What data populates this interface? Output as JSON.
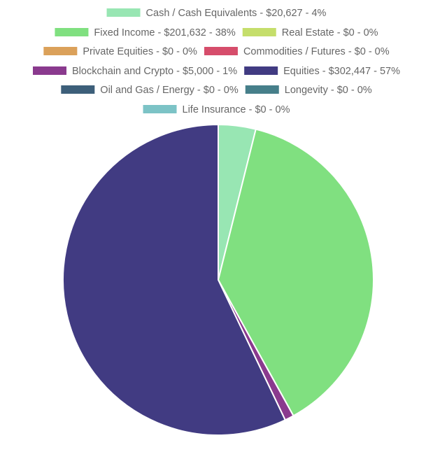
{
  "chart_data": {
    "type": "pie",
    "slices": [
      {
        "label": "Cash / Cash Equivalents - $20,627 - 4%",
        "name": "Cash / Cash Equivalents",
        "value": 20627,
        "percent": 4,
        "color": "#98e6b3"
      },
      {
        "label": "Fixed Income - $201,632 - 38%",
        "name": "Fixed Income",
        "value": 201632,
        "percent": 38,
        "color": "#80e080"
      },
      {
        "label": "Real Estate - $0 - 0%",
        "name": "Real Estate",
        "value": 0,
        "percent": 0,
        "color": "#c5de6b"
      },
      {
        "label": "Private Equities - $0 - 0%",
        "name": "Private Equities",
        "value": 0,
        "percent": 0,
        "color": "#dba15a"
      },
      {
        "label": "Commodities / Futures - $0 - 0%",
        "name": "Commodities / Futures",
        "value": 0,
        "percent": 0,
        "color": "#d64d6b"
      },
      {
        "label": "Blockchain and Crypto - $5,000 - 1%",
        "name": "Blockchain and Crypto",
        "value": 5000,
        "percent": 1,
        "color": "#8a3a8e"
      },
      {
        "label": "Equities - $302,447 - 57%",
        "name": "Equities",
        "value": 302447,
        "percent": 57,
        "color": "#413b82"
      },
      {
        "label": "Oil and Gas / Energy - $0 - 0%",
        "name": "Oil and Gas / Energy",
        "value": 0,
        "percent": 0,
        "color": "#3d5f7a"
      },
      {
        "label": "Longevity - $0 - 0%",
        "name": "Longevity",
        "value": 0,
        "percent": 0,
        "color": "#467f8a"
      },
      {
        "label": "Life Insurance - $0 - 0%",
        "name": "Life Insurance",
        "value": 0,
        "percent": 0,
        "color": "#7cc3c6"
      }
    ],
    "legend_position": "top"
  }
}
